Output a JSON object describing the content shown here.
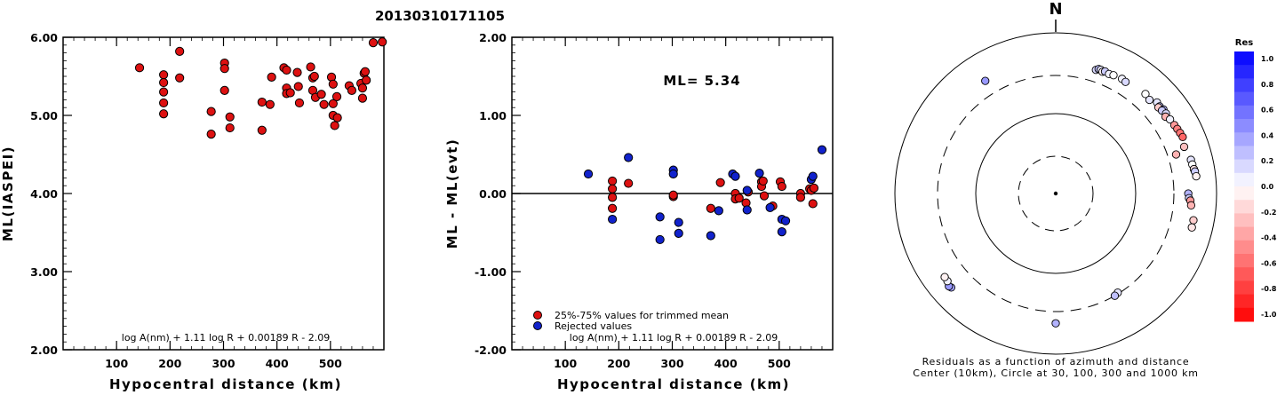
{
  "title": "20130310171105",
  "chart_data": [
    {
      "type": "scatter",
      "xlabel": "Hypocentral distance (km)",
      "ylabel": "ML(IASPEI)",
      "xlim": [
        0,
        600
      ],
      "ylim": [
        2.0,
        6.0
      ],
      "x_ticks": [
        100,
        200,
        300,
        400,
        500
      ],
      "x_tick_labels": [
        "100",
        "200",
        "300",
        "400",
        "500"
      ],
      "y_ticks": [
        2.0,
        3.0,
        4.0,
        5.0,
        6.0
      ],
      "y_tick_labels": [
        "2.00",
        "3.00",
        "4.00",
        "5.00",
        "6.00"
      ],
      "formula": "log A(nm) + 1.11 log R + 0.00189 R - 2.09",
      "marker_color": "#dd1111",
      "points": [
        [
          143,
          5.61
        ],
        [
          188,
          5.52
        ],
        [
          188,
          5.42
        ],
        [
          188,
          5.3
        ],
        [
          188,
          5.16
        ],
        [
          188,
          5.02
        ],
        [
          218,
          5.82
        ],
        [
          218,
          5.48
        ],
        [
          277,
          5.05
        ],
        [
          277,
          4.76
        ],
        [
          302,
          5.67
        ],
        [
          302,
          5.6
        ],
        [
          302,
          5.32
        ],
        [
          312,
          4.98
        ],
        [
          312,
          4.84
        ],
        [
          372,
          5.17
        ],
        [
          372,
          4.81
        ],
        [
          387,
          5.14
        ],
        [
          390,
          5.49
        ],
        [
          413,
          5.61
        ],
        [
          418,
          5.58
        ],
        [
          418,
          5.35
        ],
        [
          418,
          5.28
        ],
        [
          425,
          5.29
        ],
        [
          438,
          5.55
        ],
        [
          440,
          5.37
        ],
        [
          442,
          5.16
        ],
        [
          463,
          5.62
        ],
        [
          467,
          5.48
        ],
        [
          467,
          5.32
        ],
        [
          470,
          5.5
        ],
        [
          472,
          5.23
        ],
        [
          483,
          5.27
        ],
        [
          488,
          5.14
        ],
        [
          502,
          5.49
        ],
        [
          505,
          5.4
        ],
        [
          505,
          5.15
        ],
        [
          505,
          5.0
        ],
        [
          508,
          4.87
        ],
        [
          512,
          5.24
        ],
        [
          513,
          4.97
        ],
        [
          535,
          5.38
        ],
        [
          540,
          5.32
        ],
        [
          557,
          5.41
        ],
        [
          560,
          5.35
        ],
        [
          560,
          5.22
        ],
        [
          563,
          5.54
        ],
        [
          565,
          5.56
        ],
        [
          567,
          5.45
        ],
        [
          580,
          5.93
        ],
        [
          597,
          5.94
        ]
      ]
    },
    {
      "type": "scatter",
      "xlabel": "Hypocentral distance (km)",
      "ylabel": "ML - ML(evt)",
      "xlim": [
        0,
        600
      ],
      "ylim": [
        -2.0,
        2.0
      ],
      "x_ticks": [
        100,
        200,
        300,
        400,
        500
      ],
      "x_tick_labels": [
        "100",
        "200",
        "300",
        "400",
        "500"
      ],
      "y_ticks": [
        -2.0,
        -1.0,
        0.0,
        1.0,
        2.0
      ],
      "y_tick_labels": [
        "-2.00",
        "-1.00",
        "0.00",
        "1.00",
        "2.00"
      ],
      "annotation": "ML= 5.34",
      "formula": "log A(nm) + 1.11 log R + 0.00189 R - 2.09",
      "legend": [
        "25%-75% values for trimmed mean",
        "Rejected values"
      ],
      "series": [
        {
          "color": "#dd1111",
          "points": [
            [
              188,
              0.16
            ],
            [
              188,
              0.06
            ],
            [
              188,
              -0.05
            ],
            [
              188,
              -0.19
            ],
            [
              218,
              0.13
            ],
            [
              302,
              -0.04
            ],
            [
              302,
              -0.02
            ],
            [
              372,
              -0.19
            ],
            [
              390,
              0.14
            ],
            [
              418,
              0.0
            ],
            [
              418,
              -0.07
            ],
            [
              425,
              -0.06
            ],
            [
              438,
              -0.12
            ],
            [
              442,
              0.02
            ],
            [
              467,
              0.15
            ],
            [
              467,
              0.09
            ],
            [
              470,
              0.16
            ],
            [
              472,
              -0.03
            ],
            [
              488,
              -0.16
            ],
            [
              502,
              0.15
            ],
            [
              505,
              0.09
            ],
            [
              540,
              0.0
            ],
            [
              540,
              -0.05
            ],
            [
              557,
              0.06
            ],
            [
              560,
              0.04
            ],
            [
              563,
              -0.13
            ],
            [
              565,
              0.07
            ]
          ]
        },
        {
          "color": "#1122cc",
          "points": [
            [
              143,
              0.25
            ],
            [
              188,
              -0.33
            ],
            [
              218,
              0.46
            ],
            [
              277,
              -0.3
            ],
            [
              277,
              -0.59
            ],
            [
              302,
              0.3
            ],
            [
              302,
              0.25
            ],
            [
              312,
              -0.37
            ],
            [
              312,
              -0.51
            ],
            [
              372,
              -0.54
            ],
            [
              387,
              -0.22
            ],
            [
              413,
              0.25
            ],
            [
              418,
              0.22
            ],
            [
              440,
              0.04
            ],
            [
              440,
              -0.21
            ],
            [
              463,
              0.26
            ],
            [
              483,
              -0.18
            ],
            [
              505,
              -0.33
            ],
            [
              505,
              -0.49
            ],
            [
              512,
              -0.35
            ],
            [
              560,
              0.18
            ],
            [
              563,
              0.22
            ],
            [
              580,
              0.56
            ]
          ]
        }
      ]
    },
    {
      "type": "scatter",
      "subtype": "polar",
      "north_label": "N",
      "caption_line1": "Residuals as a function of azimuth and distance",
      "caption_line2": "Center (10km), Circle at 30, 100, 300 and 1000 km",
      "colorbar_title": "Res",
      "colorbar_ticks": [
        "1.0",
        "0.8",
        "0.6",
        "0.4",
        "0.2",
        "0.0",
        "-0.2",
        "-0.4",
        "-0.6",
        "-0.8",
        "-1.0"
      ],
      "points": [
        {
          "az": 18,
          "dist_km": 420,
          "res": 0.15
        },
        {
          "az": 19,
          "dist_km": 440,
          "res": 0.25
        },
        {
          "az": 20,
          "dist_km": 440,
          "res": 0.1
        },
        {
          "az": 21,
          "dist_km": 425,
          "res": -0.05
        },
        {
          "az": 22,
          "dist_km": 440,
          "res": 0.2
        },
        {
          "az": 24,
          "dist_km": 430,
          "res": 0.05
        },
        {
          "az": 26,
          "dist_km": 440,
          "res": 0.0
        },
        {
          "az": 30,
          "dist_km": 450,
          "res": 0.05
        },
        {
          "az": 32,
          "dist_km": 440,
          "res": 0.15
        },
        {
          "az": 42,
          "dist_km": 470,
          "res": 0.0
        },
        {
          "az": 45,
          "dist_km": 450,
          "res": 0.1
        },
        {
          "az": 48,
          "dist_km": 500,
          "res": 0.1
        },
        {
          "az": 50,
          "dist_km": 490,
          "res": 0.25
        },
        {
          "az": 50,
          "dist_km": 470,
          "res": -0.2
        },
        {
          "az": 52,
          "dist_km": 505,
          "res": 0.3
        },
        {
          "az": 52,
          "dist_km": 480,
          "res": 0.2
        },
        {
          "az": 54,
          "dist_km": 500,
          "res": 0.15
        },
        {
          "az": 55,
          "dist_km": 470,
          "res": -0.3
        },
        {
          "az": 57,
          "dist_km": 500,
          "res": 0.05
        },
        {
          "az": 60,
          "dist_km": 510,
          "res": -0.4
        },
        {
          "az": 62,
          "dist_km": 520,
          "res": -0.5
        },
        {
          "az": 64,
          "dist_km": 530,
          "res": -0.55
        },
        {
          "az": 66,
          "dist_km": 540,
          "res": -0.6
        },
        {
          "az": 70,
          "dist_km": 505,
          "res": -0.25
        },
        {
          "az": 72,
          "dist_km": 380,
          "res": -0.3
        },
        {
          "az": 76,
          "dist_km": 545,
          "res": 0.1
        },
        {
          "az": 78,
          "dist_km": 550,
          "res": 0.0
        },
        {
          "az": 80,
          "dist_km": 560,
          "res": -0.1
        },
        {
          "az": 81,
          "dist_km": 570,
          "res": 0.2
        },
        {
          "az": 83,
          "dist_km": 580,
          "res": -0.05
        },
        {
          "az": 90,
          "dist_km": 450,
          "res": 0.3
        },
        {
          "az": 92,
          "dist_km": 460,
          "res": 0.2
        },
        {
          "az": 93,
          "dist_km": 480,
          "res": -0.4
        },
        {
          "az": 95,
          "dist_km": 495,
          "res": -0.3
        },
        {
          "az": 101,
          "dist_km": 560,
          "res": -0.2
        },
        {
          "az": 104,
          "dist_km": 560,
          "res": -0.1
        },
        {
          "az": 148,
          "dist_km": 290,
          "res": 0.1
        },
        {
          "az": 150,
          "dist_km": 300,
          "res": 0.25
        },
        {
          "az": 180,
          "dist_km": 418,
          "res": 0.3
        },
        {
          "az": 228,
          "dist_km": 565,
          "res": 0.35
        },
        {
          "az": 229,
          "dist_km": 580,
          "res": 0.4
        },
        {
          "az": 231,
          "dist_km": 545,
          "res": 0.05
        },
        {
          "az": 233,
          "dist_km": 540,
          "res": -0.05
        },
        {
          "az": 328,
          "dist_km": 455,
          "res": 0.4
        }
      ]
    }
  ]
}
